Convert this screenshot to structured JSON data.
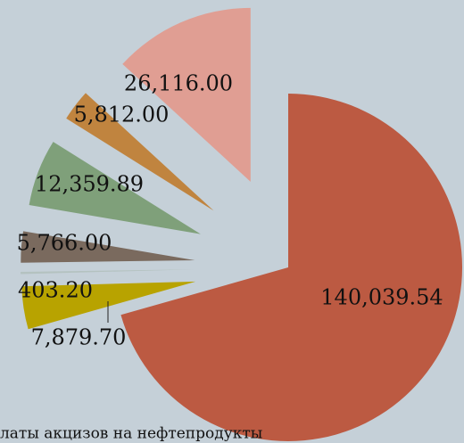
{
  "chart_data": {
    "type": "pie",
    "title": "латы акцизов на нефтепродукты",
    "categories": [
      null,
      null,
      null,
      null,
      null,
      null,
      null
    ],
    "values": [
      140039.54,
      7879.7,
      403.2,
      5766.0,
      12359.89,
      5812.0,
      26116.0
    ],
    "value_labels": [
      "140,039.54",
      "7,879.70",
      "403.20",
      "5,766.00",
      "12,359.89",
      "5,812.00",
      "26,116.00"
    ],
    "colors": [
      "#bc5a42",
      "#b8a300",
      "#b4c2c0",
      "#7a6a5e",
      "#7fa07a",
      "#c0843f",
      "#e09e93"
    ]
  }
}
